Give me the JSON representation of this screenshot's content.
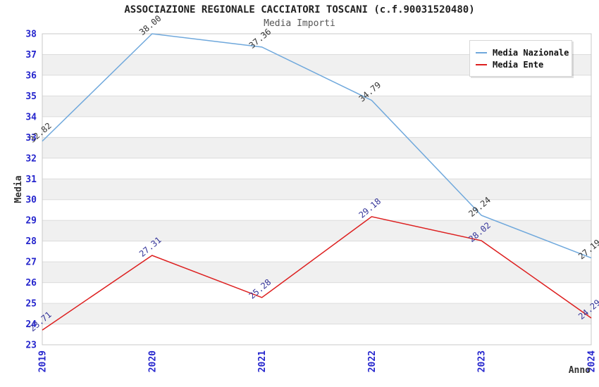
{
  "header": {
    "title": "ASSOCIAZIONE REGIONALE CACCIATORI TOSCANI (c.f.90031520480)",
    "subtitle": "Media Importi"
  },
  "legend": {
    "position": "top-right",
    "items": [
      {
        "label": "Media Nazionale",
        "color": "#6FA8DC"
      },
      {
        "label": "Media Ente",
        "color": "#DD1F1F"
      }
    ]
  },
  "chart_data": {
    "type": "line",
    "title": "Media Importi",
    "x": [
      "2019",
      "2020",
      "2021",
      "2022",
      "2023",
      "2024"
    ],
    "series": [
      {
        "name": "Media Nazionale",
        "color": "#6FA8DC",
        "label_color": "#333333",
        "values": [
          32.82,
          38.0,
          37.36,
          34.79,
          29.24,
          27.19
        ]
      },
      {
        "name": "Media Ente",
        "color": "#DD1F1F",
        "label_color": "#333399",
        "values": [
          23.71,
          27.31,
          25.28,
          29.18,
          28.02,
          24.29
        ]
      }
    ],
    "xlabel": "Anno",
    "ylabel": "Media",
    "ylim": [
      23,
      38
    ],
    "y_tick_step": 1,
    "grid": true,
    "banded_background": true,
    "legend_position": "top-right",
    "colors": {
      "axis_tick_label": "#2525CD",
      "axis_title": "#333333",
      "grid_line": "#DCDCDC",
      "plot_border": "#C8C8C8",
      "band_fill": "#F0F0F0",
      "plot_background": "#FFFFFF"
    }
  }
}
